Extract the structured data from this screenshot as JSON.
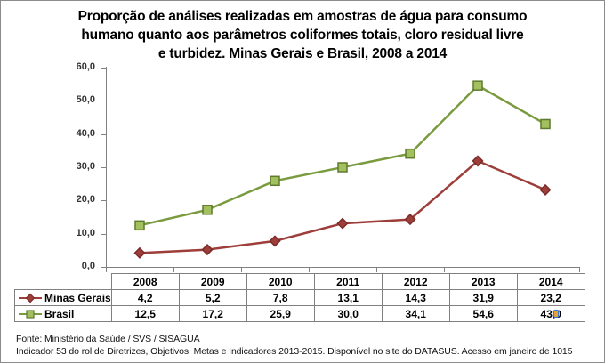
{
  "title_lines": [
    "Proporção de análises realizadas em amostras de água para consumo",
    "humano quanto aos parâmetros coliformes totais, cloro residual livre",
    "e turbidez. Minas Gerais e Brasil, 2008 a 2014"
  ],
  "chart_data": {
    "type": "line",
    "title": "Proporção de análises realizadas em amostras de água para consumo humano quanto aos parâmetros coliformes totais, cloro residual livre e turbidez. Minas Gerais e Brasil, 2008 a 2014",
    "categories": [
      "2008",
      "2009",
      "2010",
      "2011",
      "2012",
      "2013",
      "2014"
    ],
    "series": [
      {
        "name": "Minas Gerais",
        "values": [
          4.2,
          5.2,
          7.8,
          13.1,
          14.3,
          31.9,
          23.2
        ],
        "values_display": [
          "4,2",
          "5,2",
          "7,8",
          "13,1",
          "14,3",
          "31,9",
          "23,2"
        ],
        "marker": "diamond",
        "line_color": "#9e3e3a",
        "marker_fill": "#9e3e3a",
        "marker_stroke": "#7a2c29"
      },
      {
        "name": "Brasil",
        "values": [
          12.5,
          17.2,
          25.9,
          30.0,
          34.1,
          54.6,
          43.0
        ],
        "values_display": [
          "12,5",
          "17,2",
          "25,9",
          "30,0",
          "34,1",
          "54,6",
          "43,0"
        ],
        "marker": "square",
        "line_color": "#7a9a3e",
        "marker_fill": "#a3c05e",
        "marker_stroke": "#5e7a2e"
      }
    ],
    "ylim": [
      0,
      60
    ],
    "ytick_step": 10,
    "ytick_labels": [
      "0,0",
      "10,0",
      "20,0",
      "30,0",
      "40,0",
      "50,0",
      "60,0"
    ],
    "grid": false,
    "legend_position": "table-left",
    "axis_color": "#808080"
  },
  "footer": {
    "line1": "Fonte: Ministério da Saúde / SVS / SISAGUA",
    "line2": "Indicador 53 do rol de Diretrizes, Objetivos, Metas e Indicadores 2013-2015. Disponível no site do DATASUS. Acesso em janeiro de 1015"
  }
}
